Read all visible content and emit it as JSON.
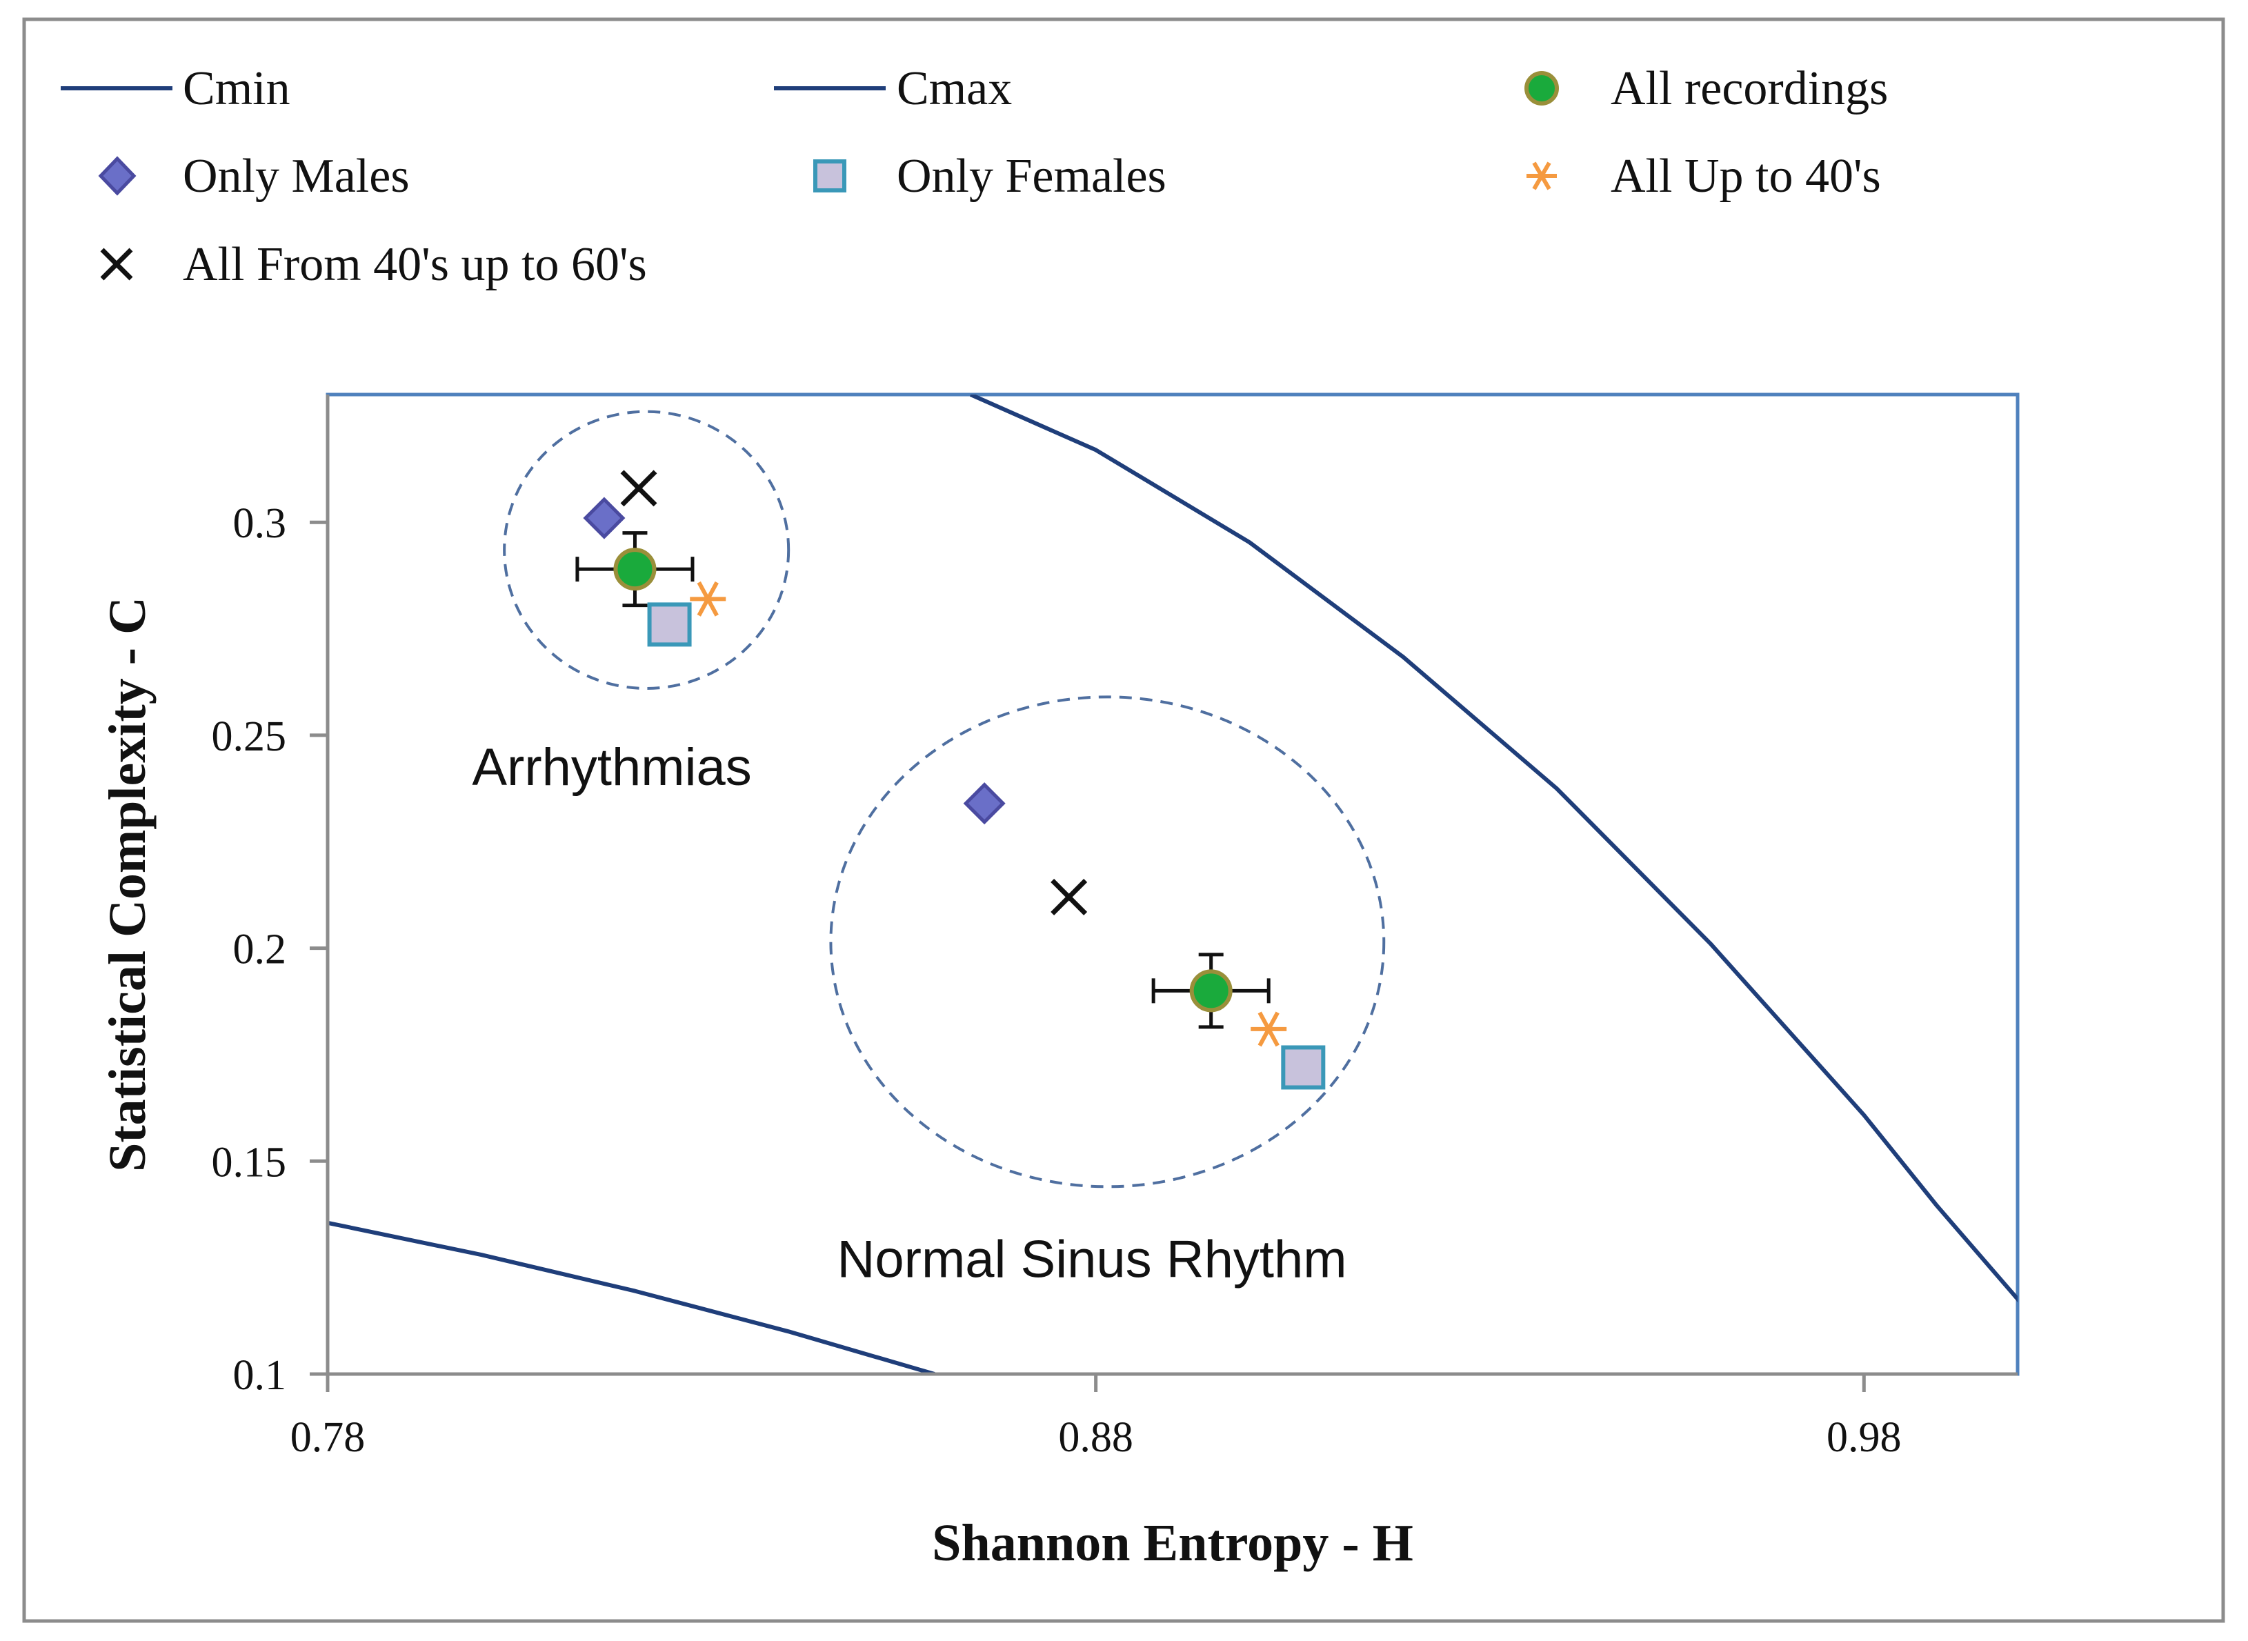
{
  "chart_data": {
    "type": "scatter",
    "title": "",
    "xlabel": "Shannon Entropy - H",
    "ylabel": "Statistical Complexity - C",
    "xlim": [
      0.78,
      1.0
    ],
    "ylim": [
      0.1,
      0.33
    ],
    "x_ticks": [
      "0.78",
      "0.88",
      "0.98"
    ],
    "x_tick_values": [
      0.78,
      0.88,
      0.98
    ],
    "y_ticks": [
      "0.1",
      "0.15",
      "0.2",
      "0.25",
      "0.3"
    ],
    "y_tick_values": [
      0.1,
      0.15,
      0.2,
      0.25,
      0.3
    ],
    "grid": false,
    "legend_position": "top",
    "colors": {
      "curve": "#1f3e7a",
      "plot_border": "#4f81bd",
      "green_fill": "#1aaa3c",
      "green_edge": "#9a8f3a",
      "diamond_fill": "#6a6fc8",
      "diamond_edge": "#4a4aa0",
      "square_fill": "#c8c2dc",
      "square_edge": "#3a98b8",
      "asterisk": "#f59a40",
      "cross": "#111111",
      "dashed_circle": "#4f6fa0"
    },
    "legend": [
      {
        "label": "Cmin",
        "marker": "line"
      },
      {
        "label": "Cmax",
        "marker": "line"
      },
      {
        "label": "All recordings",
        "marker": "circle"
      },
      {
        "label": "Only Males",
        "marker": "diamond"
      },
      {
        "label": "Only Females",
        "marker": "square"
      },
      {
        "label": "All Up to 40's",
        "marker": "asterisk"
      },
      {
        "label": "All From 40's up to 60's",
        "marker": "cross"
      }
    ],
    "series": [
      {
        "name": "Cmin",
        "type": "line",
        "points": [
          [
            0.78,
            0.1355
          ],
          [
            0.8,
            0.128
          ],
          [
            0.82,
            0.1195
          ],
          [
            0.84,
            0.11
          ],
          [
            0.859,
            0.1
          ]
        ]
      },
      {
        "name": "Cmax",
        "type": "line",
        "points": [
          [
            0.8637,
            0.33
          ],
          [
            0.88,
            0.317
          ],
          [
            0.9,
            0.2953
          ],
          [
            0.92,
            0.2684
          ],
          [
            0.94,
            0.2375
          ],
          [
            0.96,
            0.2011
          ],
          [
            0.98,
            0.1608
          ],
          [
            0.9895,
            0.1395
          ],
          [
            1.0,
            0.1176
          ],
          [
            1.0079,
            0.1
          ]
        ]
      },
      {
        "name": "All recordings",
        "type": "scatter",
        "points": [
          {
            "x": 0.82,
            "y": 0.289,
            "xerr": 0.0075,
            "yerr": 0.0085
          },
          {
            "x": 0.895,
            "y": 0.19,
            "xerr": 0.0075,
            "yerr": 0.0085
          }
        ]
      },
      {
        "name": "Only Males",
        "type": "scatter",
        "points": [
          {
            "x": 0.816,
            "y": 0.301
          },
          {
            "x": 0.8655,
            "y": 0.234
          }
        ]
      },
      {
        "name": "Only Females",
        "type": "scatter",
        "points": [
          {
            "x": 0.8245,
            "y": 0.276
          },
          {
            "x": 0.907,
            "y": 0.172
          }
        ]
      },
      {
        "name": "All Up to 40's",
        "type": "scatter",
        "points": [
          {
            "x": 0.8295,
            "y": 0.282
          },
          {
            "x": 0.9025,
            "y": 0.181
          }
        ]
      },
      {
        "name": "All From 40's up to 60's",
        "type": "scatter",
        "points": [
          {
            "x": 0.8205,
            "y": 0.308
          },
          {
            "x": 0.8765,
            "y": 0.212
          }
        ]
      }
    ],
    "annotations": [
      {
        "label": "Arrhythmias",
        "x": 0.817,
        "y": 0.2425
      },
      {
        "label": "Normal Sinus Rhythm",
        "x": 0.8795,
        "y": 0.127
      }
    ],
    "groups": [
      {
        "name": "Arrhythmias",
        "center_x": 0.8215,
        "center_y": 0.2935,
        "radius_x": 0.0185,
        "radius_y": 0.0325
      },
      {
        "name": "Normal Sinus Rhythm",
        "center_x": 0.8815,
        "center_y": 0.2015,
        "radius_x": 0.036,
        "radius_y": 0.0575
      }
    ]
  }
}
